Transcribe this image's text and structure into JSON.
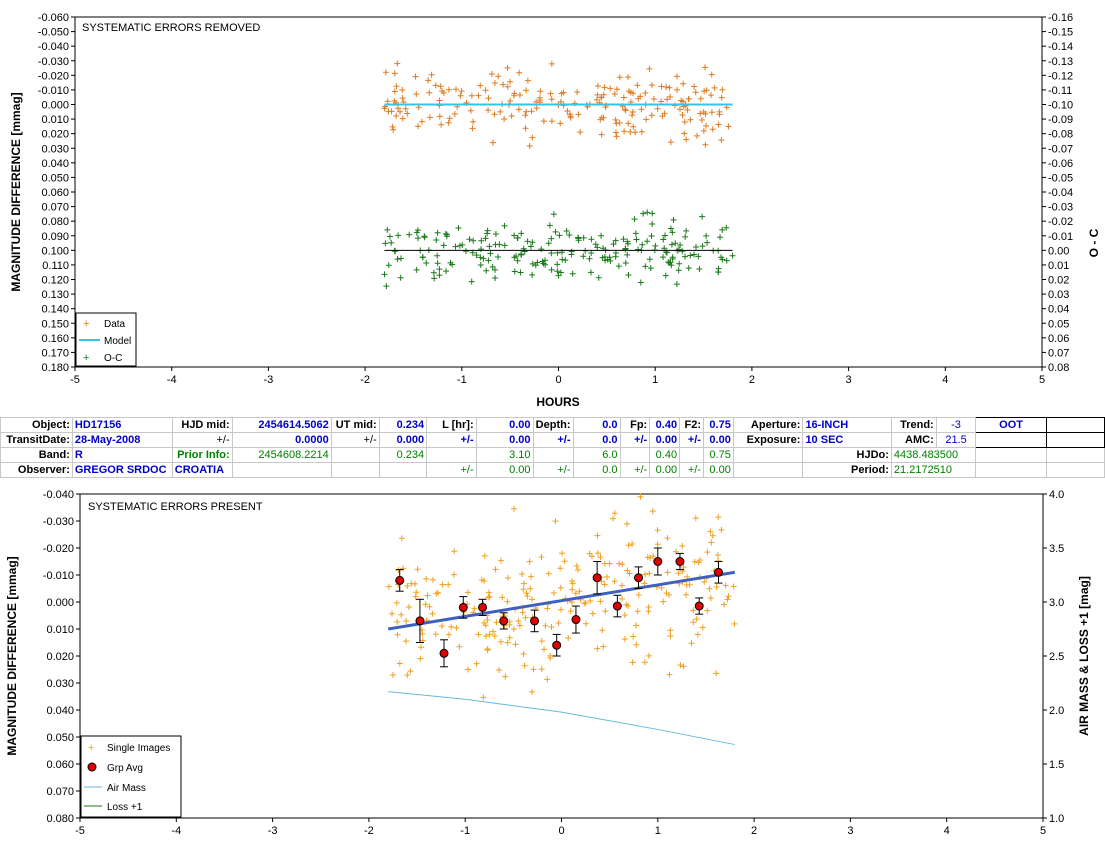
{
  "chart_data": [
    {
      "type": "scatter",
      "title": "SYSTEMATIC ERRORS REMOVED",
      "xlabel": "HOURS",
      "ylabel": "MAGNITUDE DIFFERENCE [mmag]",
      "y2label": "O - C",
      "xlim": [
        -5,
        5
      ],
      "ylim": [
        -0.06,
        0.18
      ],
      "y_inverted": true,
      "y2lim": [
        -0.16,
        0.08
      ],
      "x_ticks": [
        "-5",
        "-4",
        "-3",
        "-2",
        "-1",
        "0",
        "1",
        "2",
        "3",
        "4",
        "5"
      ],
      "y_ticks": [
        "-0.060",
        "-0.050",
        "-0.040",
        "-0.030",
        "-0.020",
        "-0.010",
        "0.000",
        "0.010",
        "0.020",
        "0.030",
        "0.040",
        "0.050",
        "0.060",
        "0.070",
        "0.080",
        "0.090",
        "0.100",
        "0.110",
        "0.120",
        "0.130",
        "0.140",
        "0.150",
        "0.160",
        "0.170",
        "0.180"
      ],
      "y2_ticks": [
        "-0.16",
        "-0.15",
        "-0.14",
        "-0.13",
        "-0.12",
        "-0.11",
        "-0.10",
        "-0.09",
        "-0.08",
        "-0.07",
        "-0.06",
        "-0.05",
        "-0.04",
        "-0.03",
        "-0.02",
        "-0.01",
        "0.00",
        "0.01",
        "0.02",
        "0.03",
        "0.04",
        "0.05",
        "0.06",
        "0.07",
        "0.08"
      ],
      "legend_position": "bottom-left",
      "legend": [
        "Data",
        "Model",
        "O-C"
      ],
      "colors": {
        "data": "#e07a1f",
        "model": "#33c4e8",
        "oc": "#1a7a1a",
        "oc_line": "#000000"
      },
      "series": [
        {
          "name": "Data",
          "type": "scatter",
          "x_range": [
            -1.8,
            1.8
          ],
          "mean": 0.0,
          "spread": 0.016
        },
        {
          "name": "Model",
          "type": "line",
          "x": [
            -1.8,
            1.8
          ],
          "y": [
            0.0,
            0.0
          ]
        },
        {
          "name": "O-C",
          "type": "scatter",
          "x_range": [
            -1.8,
            1.8
          ],
          "mean": 0.0,
          "spread": 0.016,
          "axis": "y2"
        },
        {
          "type": "line",
          "axis": "y2",
          "x": [
            -1.8,
            1.8
          ],
          "y": [
            0.0,
            0.0
          ]
        }
      ]
    },
    {
      "type": "scatter",
      "title": "SYSTEMATIC ERRORS PRESENT",
      "xlabel": "",
      "ylabel": "MAGNITUDE DIFFERENCE [mmag]",
      "y2label": "AIR MASS & LOSS +1 [mag]",
      "xlim": [
        -5,
        5
      ],
      "ylim": [
        -0.04,
        0.08
      ],
      "y_inverted": true,
      "y2lim": [
        1.0,
        4.0
      ],
      "x_ticks": [
        "-5",
        "-4",
        "-3",
        "-2",
        "-1",
        "0",
        "1",
        "2",
        "3",
        "4",
        "5"
      ],
      "y_ticks": [
        "-0.040",
        "-0.030",
        "-0.020",
        "-0.010",
        "0.000",
        "0.010",
        "0.020",
        "0.030",
        "0.040",
        "0.050",
        "0.060",
        "0.070",
        "0.080"
      ],
      "y2_ticks": [
        "4.0",
        "3.5",
        "3.0",
        "2.5",
        "2.0",
        "1.5",
        "1.0"
      ],
      "legend_position": "bottom-left",
      "legend": [
        "Single Images",
        "Grp Avg",
        "Air Mass",
        "Loss +1"
      ],
      "colors": {
        "single": "#f0a020",
        "grp": "#e00000",
        "trend": "#4060c0",
        "airmass": "#66bbdd",
        "loss": "#1a7a1a"
      },
      "series": [
        {
          "name": "Single Images",
          "type": "scatter",
          "x_range": [
            -1.8,
            1.8
          ],
          "spread": 0.03
        },
        {
          "name": "Grp Avg",
          "type": "errorbar",
          "x": [
            -1.68,
            -1.47,
            -1.22,
            -1.02,
            -0.82,
            -0.6,
            -0.28,
            -0.05,
            0.15,
            0.37,
            0.58,
            0.8,
            1.0,
            1.23,
            1.43,
            1.63
          ],
          "y": [
            -0.008,
            0.007,
            0.019,
            0.002,
            0.002,
            0.007,
            0.007,
            0.016,
            0.0065,
            -0.009,
            0.0015,
            -0.009,
            -0.015,
            -0.015,
            0.0015,
            -0.011
          ],
          "err": [
            0.004,
            0.008,
            0.005,
            0.004,
            0.003,
            0.003,
            0.004,
            0.004,
            0.005,
            0.006,
            0.004,
            0.004,
            0.005,
            0.003,
            0.003,
            0.004
          ]
        },
        {
          "name": "Trend",
          "type": "line",
          "x": [
            -1.8,
            1.8
          ],
          "y": [
            0.01,
            -0.011
          ]
        },
        {
          "name": "Air Mass",
          "type": "line",
          "axis": "y2",
          "x": [
            -1.8,
            -1.0,
            0.0,
            1.0,
            1.8
          ],
          "y": [
            2.17,
            2.1,
            1.98,
            1.82,
            1.68
          ]
        }
      ]
    }
  ],
  "info_table": {
    "row1": {
      "object_label": "Object:",
      "object": "HD17156",
      "hjd_label": "HJD mid:",
      "hjd": "2454614.5062",
      "ut_label": "UT mid:",
      "ut": "0.234",
      "l_label": "L [hr]:",
      "l": "0.00",
      "depth_label": "Depth:",
      "depth": "0.0",
      "fp_label": "Fp:",
      "fp": "0.40",
      "f2_label": "F2:",
      "f2": "0.75",
      "aperture_label": "Aperture:",
      "aperture": "16-INCH",
      "trend_label": "Trend:",
      "trend": "-3",
      "oot": "OOT"
    },
    "row2": {
      "date_label": "TransitDate:",
      "date": "28-May-2008",
      "pm1": "+/-",
      "hjd_err": "0.0000",
      "pm2": "+/-",
      "ut_err": "0.000",
      "pm3": "+/-",
      "l_err": "0.00",
      "pm4": "+/-",
      "depth_err": "0.0",
      "pm5": "+/-",
      "fp_err": "0.00",
      "pm6": "+/-",
      "f2_err": "0.00",
      "exposure_label": "Exposure:",
      "exposure": "10 SEC",
      "amc_label": "AMC:",
      "amc": "21.5"
    },
    "row3": {
      "band_label": "Band:",
      "band": "R",
      "prior_label": "Prior Info:",
      "prior": "2454608.2214",
      "ut_prior": "0.234",
      "l_prior": "3.10",
      "depth_prior": "6.0",
      "fp_prior": "0.40",
      "f2_prior": "0.75",
      "hjdo_label": "HJDo:",
      "hjdo": "4438.483500"
    },
    "row4": {
      "observer_label": "Observer:",
      "observer": "GREGOR SRDOC",
      "location": "CROATIA",
      "pm1": "+/-",
      "l_prior_err": "0.00",
      "pm2": "+/-",
      "depth_prior_err": "0.0",
      "pm3": "+/-",
      "fp_prior_err": "0.00",
      "pm4": "+/-",
      "f2_prior_err": "0.00",
      "period_label": "Period:",
      "period": "21.2172510"
    }
  }
}
